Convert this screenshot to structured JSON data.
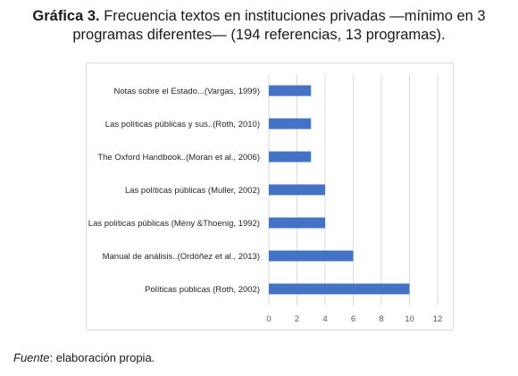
{
  "figure": {
    "title_bold": "Gráfica 3.",
    "title_line1": " Frecuencia textos en instituciones privadas —mínimo en 3",
    "title_line2": "programas diferentes— (194 referencias, 13 programas).",
    "source_label": "Fuente",
    "source_text": ": elaboración propia."
  },
  "chart_data": {
    "type": "bar",
    "orientation": "horizontal",
    "categories": [
      "Notas sobre el Estado...(Vargas, 1999)",
      "Las políticas públicas y sus..(Roth, 2010)",
      "The Oxford Handbook..(Moran et al., 2006)",
      "Las políticas públicas (Muller, 2002)",
      "Las políticas públicas (Mény &Thoenig, 1992)",
      "Manual de análisis..(Ordóñez et al., 2013)",
      "Políticas públicas (Roth, 2002)"
    ],
    "values": [
      3,
      3,
      3,
      4,
      4,
      6,
      10
    ],
    "xlim": [
      0,
      12
    ],
    "xticks": [
      0,
      2,
      4,
      6,
      8,
      10,
      12
    ],
    "grid": true,
    "legend": "none",
    "bar_color": "#4472c4",
    "grid_color": "#d9d9d9"
  }
}
